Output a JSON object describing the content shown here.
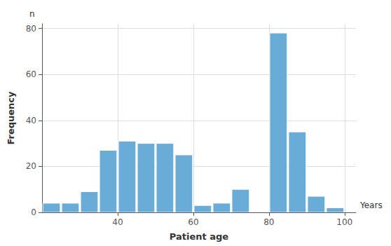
{
  "chart_data": {
    "type": "bar",
    "x": [
      22.5,
      27.5,
      32.5,
      37.5,
      42.5,
      47.5,
      52.5,
      57.5,
      62.5,
      67.5,
      72.5,
      82.5,
      87.5,
      92.5,
      97.5
    ],
    "values": [
      4,
      4,
      9,
      27,
      31,
      30,
      30,
      25,
      3,
      4,
      10,
      78,
      35,
      7,
      2
    ],
    "color": "#6aacd8",
    "xlabel": "Patient age",
    "ylabel": "Frequency",
    "annotations": [
      "n",
      "Years"
    ],
    "xlim": [
      20,
      103
    ],
    "xticks": [
      40,
      60,
      80,
      100
    ],
    "ylim": [
      0,
      82
    ],
    "yticks": [
      0,
      20,
      40,
      60,
      80
    ],
    "grid": true
  }
}
